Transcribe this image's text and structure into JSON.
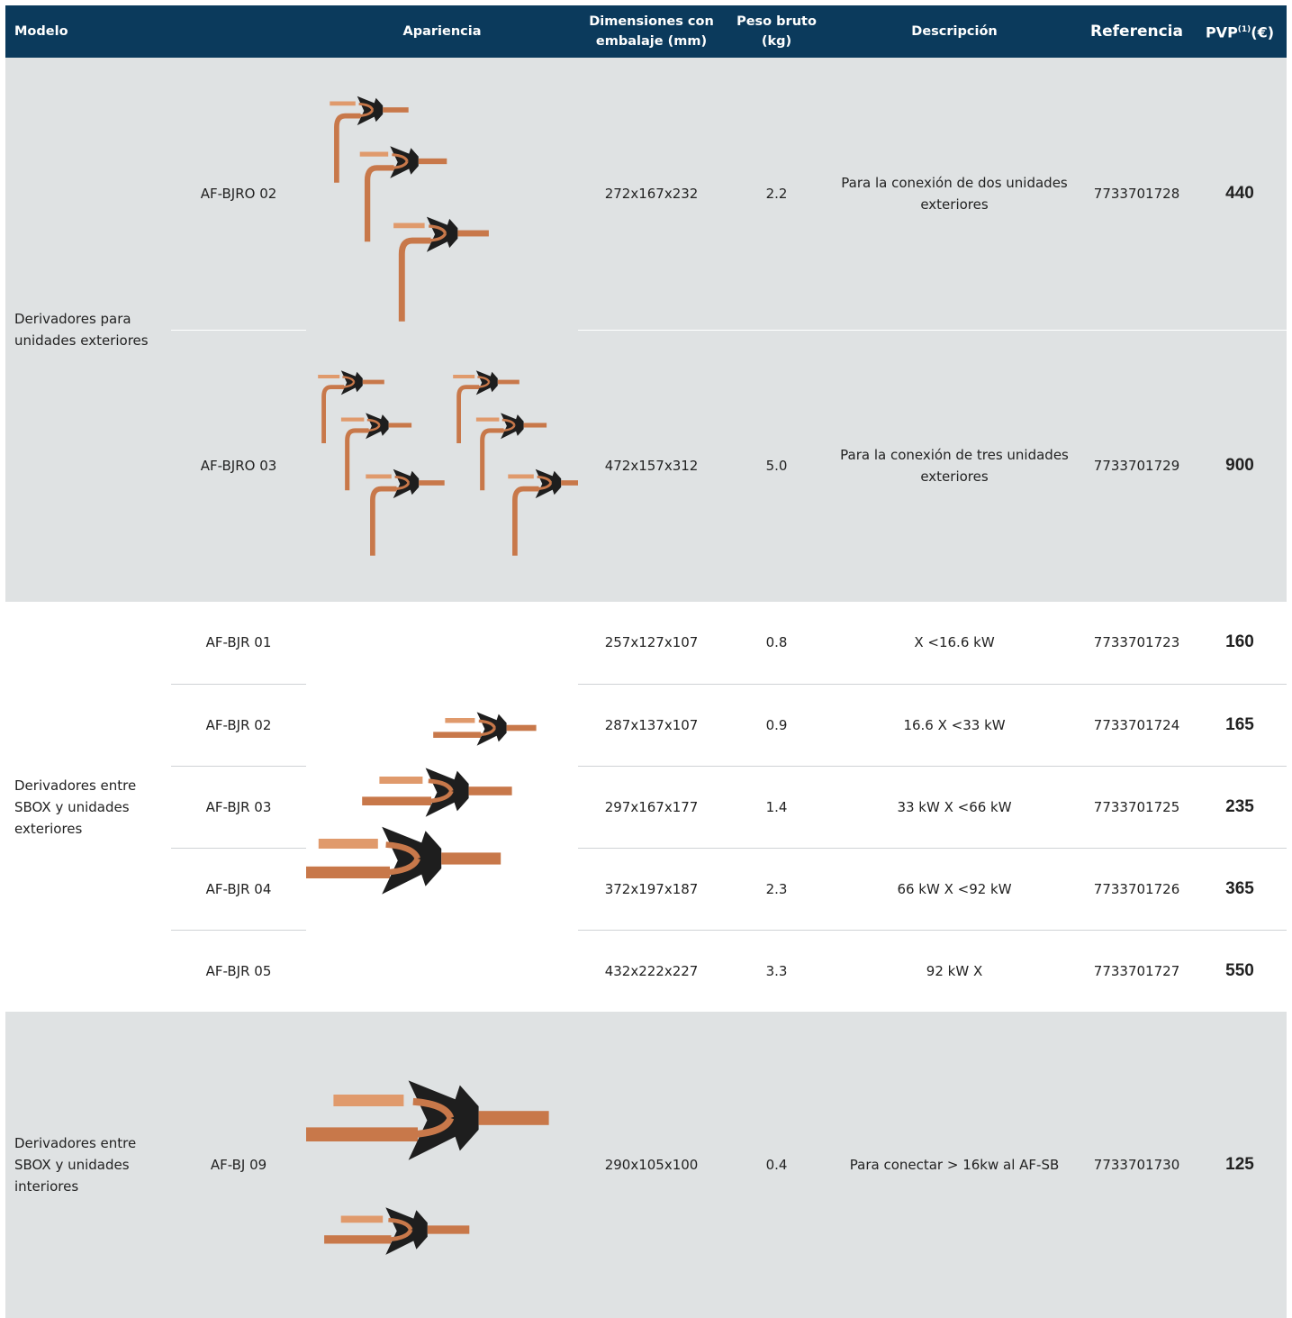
{
  "header": {
    "columns": [
      "Modelo",
      "Apariencia",
      "Dimensiones con embalaje (mm)",
      "Peso bruto (kg)",
      "Descripción",
      "Referencia"
    ],
    "price": {
      "text": "PVP",
      "sup": "(1)",
      "suffix": "(€)"
    }
  },
  "groups": [
    {
      "label": "Derivadores para unidades exteriores",
      "rows": [
        {
          "model": "AF-BJRO 02",
          "dimensions": "272x167x232",
          "weight": "2.2",
          "description": "Para la conexión de dos unidades exteriores",
          "reference": "7733701728",
          "price": "440"
        },
        {
          "model": "AF-BJRO 03",
          "dimensions": "472x157x312",
          "weight": "5.0",
          "description": "Para la conexión de tres unidades exteriores",
          "reference": "7733701729",
          "price": "900"
        }
      ]
    },
    {
      "label": "Derivadores entre SBOX y unidades exteriores",
      "rows": [
        {
          "model": "AF-BJR 01",
          "dimensions": "257x127x107",
          "weight": "0.8",
          "description": "X <16.6 kW",
          "reference": "7733701723",
          "price": "160"
        },
        {
          "model": "AF-BJR 02",
          "dimensions": "287x137x107",
          "weight": "0.9",
          "description": "16.6 X <33 kW",
          "reference": "7733701724",
          "price": "165"
        },
        {
          "model": "AF-BJR 03",
          "dimensions": "297x167x177",
          "weight": "1.4",
          "description": "33 kW X <66 kW",
          "reference": "7733701725",
          "price": "235"
        },
        {
          "model": "AF-BJR 04",
          "dimensions": "372x197x187",
          "weight": "2.3",
          "description": "66 kW X <92 kW",
          "reference": "7733701726",
          "price": "365"
        },
        {
          "model": "AF-BJR 05",
          "dimensions": "432x222x227",
          "weight": "3.3",
          "description": "92 kW X",
          "reference": "7733701727",
          "price": "550"
        }
      ]
    },
    {
      "label": "Derivadores entre SBOX y unidades interiores",
      "rows": [
        {
          "model": "AF-BJ 09",
          "dimensions": "290x105x100",
          "weight": "0.4",
          "description": "Para conectar > 16kw al AF-SB",
          "reference": "7733701730",
          "price": "125"
        }
      ]
    }
  ]
}
